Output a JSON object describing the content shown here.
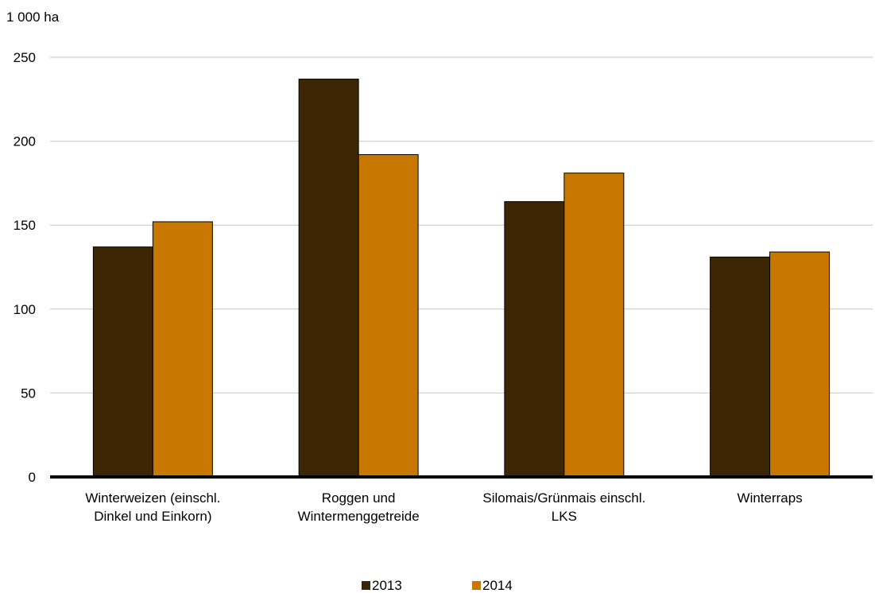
{
  "chart_data": {
    "type": "bar",
    "unit_label": "1 000 ha",
    "categories": [
      [
        "Winterweizen (einschl.",
        "Dinkel und Einkorn)"
      ],
      [
        "Roggen und",
        "Wintermenggetreide"
      ],
      [
        "Silomais/Grünmais einschl.",
        "LKS"
      ],
      [
        "Winterraps"
      ]
    ],
    "series": [
      {
        "name": "2013",
        "color": "#3d2604",
        "values": [
          137,
          237,
          164,
          131
        ]
      },
      {
        "name": "2014",
        "color": "#c87800",
        "values": [
          152,
          192,
          181,
          134
        ]
      }
    ],
    "ylim": [
      0,
      250
    ],
    "yticks": [
      "0",
      "50",
      "100",
      "150",
      "200",
      "250"
    ],
    "ytick_values": [
      0,
      50,
      100,
      150,
      200,
      250
    ],
    "grid": true,
    "legend_position": "bottom"
  }
}
